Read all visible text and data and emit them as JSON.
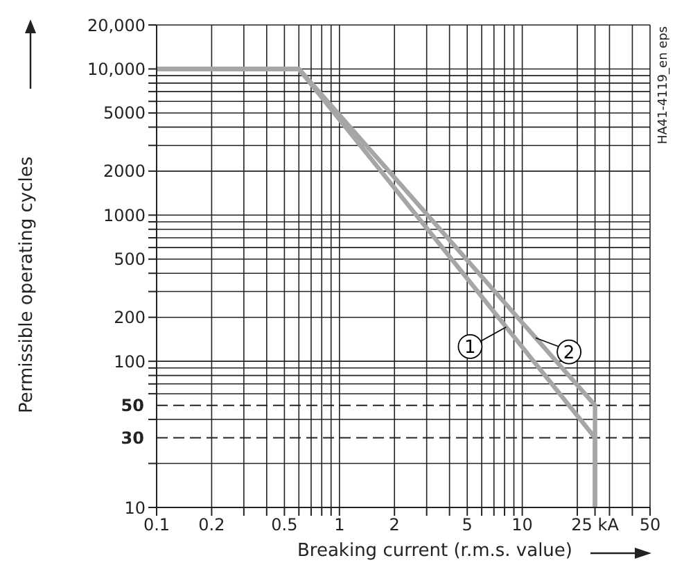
{
  "chart_data": {
    "type": "line",
    "xlabel": "Breaking current (r.m.s. value)",
    "ylabel": "Permissible operating cycles",
    "log": "xy",
    "grid": true,
    "marker": "none",
    "line_style": "solid",
    "xlim": [
      0.1,
      50
    ],
    "ylim": [
      10,
      20000
    ],
    "xticks": [
      0.1,
      0.2,
      {
        "value": 0.3,
        "label": null
      },
      {
        "value": 0.4,
        "label": null
      },
      0.5,
      {
        "value": 0.6,
        "label": null
      },
      {
        "value": 0.7,
        "label": null
      },
      {
        "value": 0.8,
        "label": null
      },
      {
        "value": 0.9,
        "label": null
      },
      1,
      2,
      {
        "value": 3,
        "label": null
      },
      {
        "value": 4,
        "label": null
      },
      5,
      {
        "value": 6,
        "label": null
      },
      {
        "value": 7,
        "label": null
      },
      {
        "value": 8,
        "label": null
      },
      {
        "value": 9,
        "label": null
      },
      10,
      {
        "value": 20,
        "label": null
      },
      {
        "value": 25,
        "label": "25 kA"
      },
      {
        "value": 30,
        "label": null
      },
      {
        "value": 40,
        "label": null
      },
      50
    ],
    "yticks": [
      10,
      {
        "value": 20,
        "label": null
      },
      {
        "value": 40,
        "label": null
      },
      {
        "value": 60,
        "label": null
      },
      {
        "value": 70,
        "label": null
      },
      {
        "value": 80,
        "label": null
      },
      {
        "value": 90,
        "label": null
      },
      100,
      200,
      {
        "value": 300,
        "label": null
      },
      {
        "value": 400,
        "label": null
      },
      500,
      {
        "value": 600,
        "label": null
      },
      {
        "value": 700,
        "label": null
      },
      {
        "value": 800,
        "label": null
      },
      {
        "value": 900,
        "label": null
      },
      1000,
      2000,
      {
        "value": 3000,
        "label": null
      },
      {
        "value": 4000,
        "label": null
      },
      5000,
      {
        "value": 6000,
        "label": null
      },
      {
        "value": 7000,
        "label": null
      },
      {
        "value": 8000,
        "label": null
      },
      {
        "value": 9000,
        "label": null
      },
      {
        "value": 10000,
        "label": "10,000"
      },
      {
        "value": 20000,
        "label": "20,000"
      }
    ],
    "series": [
      {
        "name": "1",
        "color": "#a6a6a6",
        "x": [
          0.1,
          0.6,
          25,
          25
        ],
        "values": [
          10000,
          10000,
          30,
          10
        ]
      },
      {
        "name": "2",
        "color": "#a6a6a6",
        "x": [
          0.1,
          0.6,
          25,
          25
        ],
        "values": [
          10000,
          10000,
          50,
          10
        ]
      }
    ],
    "ref_lines": [
      {
        "axis": "y",
        "value": 50,
        "label": "50",
        "line_style": "dashed"
      },
      {
        "axis": "y",
        "value": 30,
        "label": "30",
        "line_style": "dashed"
      }
    ],
    "annotations": [
      "HA41-4119_en eps"
    ]
  }
}
